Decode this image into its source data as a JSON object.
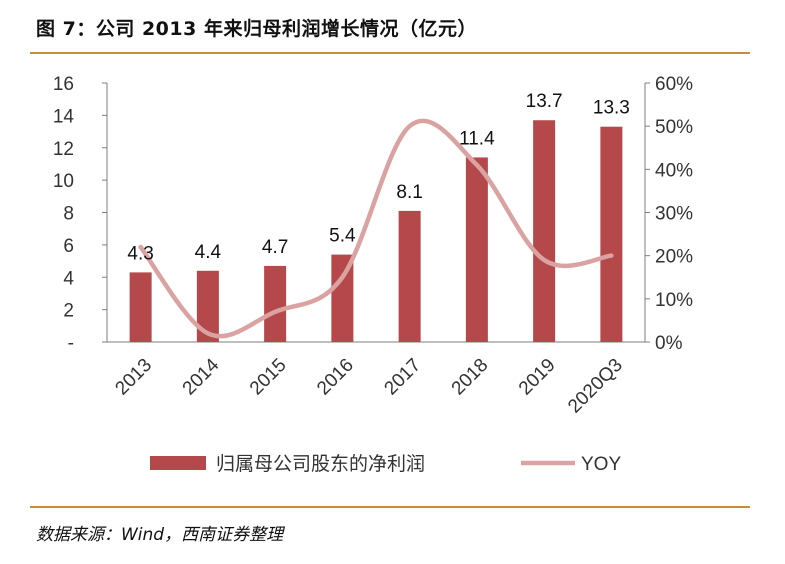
{
  "figure": {
    "title": "图 7：公司 2013 年来归母利润增长情况（亿元）",
    "source": "数据来源：Wind，西南证券整理"
  },
  "colors": {
    "bar": "#b5484a",
    "line": "#dba2a2",
    "axis": "#7f7f7f",
    "rule": "#c98c3b"
  },
  "chart_data": {
    "type": "bar",
    "title": "",
    "categories": [
      "2013",
      "2014",
      "2015",
      "2016",
      "2017",
      "2018",
      "2019",
      "2020Q3"
    ],
    "series": [
      {
        "name": "归属母公司股东的净利润",
        "type": "bar",
        "axis": "left",
        "values": [
          4.3,
          4.4,
          4.7,
          5.4,
          8.1,
          11.4,
          13.7,
          13.3
        ],
        "labels": [
          "4.3",
          "4.4",
          "4.7",
          "5.4",
          "8.1",
          "11.4",
          "13.7",
          "13.3"
        ]
      },
      {
        "name": "YOY",
        "type": "line",
        "axis": "right",
        "values": [
          0.22,
          0.02,
          0.07,
          0.15,
          0.5,
          0.41,
          0.19,
          0.2
        ]
      }
    ],
    "ylim": [
      0,
      16
    ],
    "y_ticks": [
      0,
      2,
      4,
      6,
      8,
      10,
      12,
      14,
      16
    ],
    "y_tick_labels": [
      "-",
      "2",
      "4",
      "6",
      "8",
      "10",
      "12",
      "14",
      "16"
    ],
    "y2lim": [
      0,
      0.6
    ],
    "y2_ticks": [
      0,
      0.1,
      0.2,
      0.3,
      0.4,
      0.5,
      0.6
    ],
    "y2_tick_labels": [
      "0%",
      "10%",
      "20%",
      "30%",
      "40%",
      "50%",
      "60%"
    ],
    "xlabel": "",
    "ylabel": "",
    "legend": "bottom",
    "grid": false
  }
}
